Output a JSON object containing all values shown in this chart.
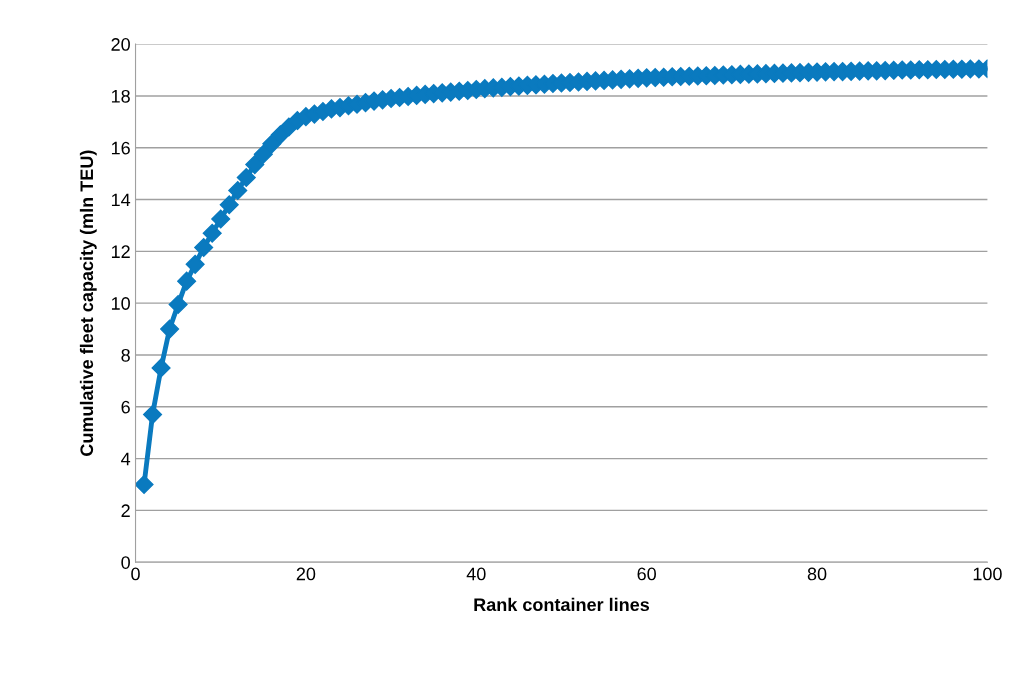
{
  "chart_data": {
    "type": "line",
    "xlabel": "Rank container lines",
    "ylabel": "Cumulative fleet capacity (mln TEU)",
    "x": [
      1,
      2,
      3,
      4,
      5,
      6,
      7,
      8,
      9,
      10,
      11,
      12,
      13,
      14,
      15,
      16,
      17,
      18,
      19,
      20,
      21,
      22,
      23,
      24,
      25,
      26,
      27,
      28,
      29,
      30,
      31,
      32,
      33,
      34,
      35,
      36,
      37,
      38,
      39,
      40,
      41,
      42,
      43,
      44,
      45,
      46,
      47,
      48,
      49,
      50,
      51,
      52,
      53,
      54,
      55,
      56,
      57,
      58,
      59,
      60,
      61,
      62,
      63,
      64,
      65,
      66,
      67,
      68,
      69,
      70,
      71,
      72,
      73,
      74,
      75,
      76,
      77,
      78,
      79,
      80,
      81,
      82,
      83,
      84,
      85,
      86,
      87,
      88,
      89,
      90,
      91,
      92,
      93,
      94,
      95,
      96,
      97,
      98,
      99,
      100
    ],
    "series": [
      {
        "color": "#0a7abf",
        "values": [
          3.0,
          5.7,
          7.5,
          9.0,
          9.95,
          10.85,
          11.5,
          12.15,
          12.7,
          13.25,
          13.8,
          14.35,
          14.85,
          15.35,
          15.75,
          16.15,
          16.5,
          16.8,
          17.05,
          17.2,
          17.3,
          17.4,
          17.5,
          17.55,
          17.62,
          17.68,
          17.74,
          17.8,
          17.85,
          17.9,
          17.94,
          17.98,
          18.02,
          18.06,
          18.09,
          18.12,
          18.15,
          18.18,
          18.21,
          18.25,
          18.28,
          18.31,
          18.33,
          18.36,
          18.38,
          18.41,
          18.43,
          18.45,
          18.48,
          18.5,
          18.52,
          18.54,
          18.56,
          18.58,
          18.6,
          18.62,
          18.64,
          18.66,
          18.68,
          18.7,
          18.71,
          18.72,
          18.74,
          18.75,
          18.76,
          18.77,
          18.78,
          18.79,
          18.81,
          18.82,
          18.83,
          18.84,
          18.85,
          18.86,
          18.87,
          18.88,
          18.89,
          18.9,
          18.91,
          18.92,
          18.93,
          18.94,
          18.94,
          18.95,
          18.96,
          18.97,
          18.97,
          18.98,
          18.99,
          19.0,
          19.0,
          19.01,
          19.01,
          19.02,
          19.02,
          19.03,
          19.03,
          19.04,
          19.04,
          19.05
        ]
      }
    ],
    "xlim": [
      0,
      100
    ],
    "xticks": [
      0,
      20,
      40,
      60,
      80,
      100
    ],
    "ylim": [
      0,
      20
    ],
    "yticks": [
      0,
      2,
      4,
      6,
      8,
      10,
      12,
      14,
      16,
      18,
      20
    ],
    "grid": "y",
    "marker": "diamond",
    "line_style": "solid",
    "legend": false
  }
}
